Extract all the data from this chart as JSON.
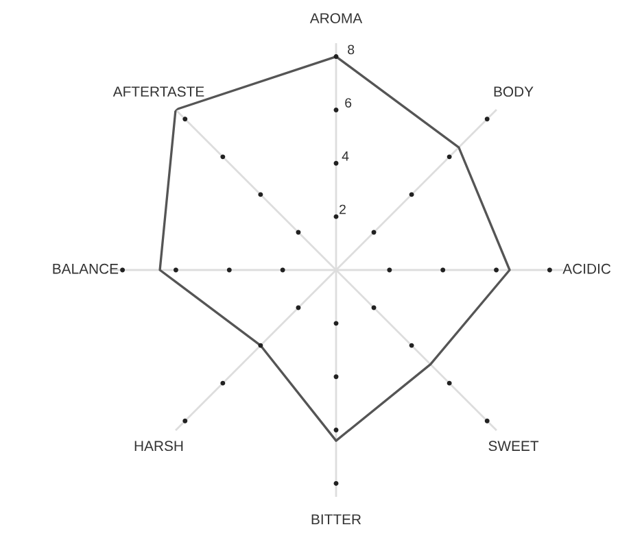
{
  "chart_data": {
    "type": "radar",
    "categories": [
      "AROMA",
      "BODY",
      "ACIDIC",
      "SWEET",
      "BITTER",
      "HARSH",
      "BALANCE",
      "AFTERTASTE"
    ],
    "series": [
      {
        "color": "#555555",
        "values": [
          8,
          6.5,
          6.5,
          5,
          6.4,
          4,
          6.6,
          8.5
        ]
      }
    ],
    "ylim": [
      0,
      8.5
    ],
    "yticks": [
      2,
      4,
      6,
      8
    ],
    "grid": "x",
    "marker": "none",
    "line_style": "solid"
  }
}
